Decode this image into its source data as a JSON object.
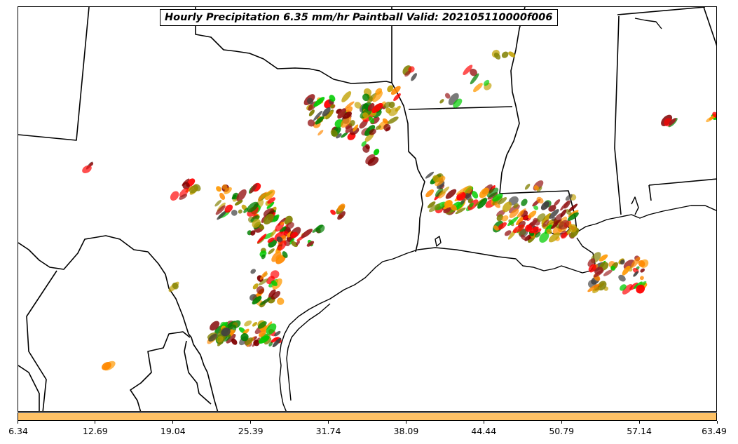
{
  "title": "Hourly Precipitation 6.35 mm/hr Paintball Valid: 202105110000f006",
  "colorbar": {
    "fill_color": "#ffc266",
    "tick_labels": [
      "6.34",
      "12.69",
      "19.04",
      "25.39",
      "31.74",
      "38.09",
      "44.44",
      "50.79",
      "57.14",
      "63.49"
    ]
  },
  "map": {
    "region": "south-central-united-states",
    "features": [
      "state-borders",
      "coastline",
      "mexico-border"
    ]
  },
  "member_colors": [
    "#00cc00",
    "#008000",
    "#808000",
    "#ff8800",
    "#ff0000",
    "#800000",
    "#404040",
    "#ff9900",
    "#c0a000",
    "#9b2020"
  ]
}
